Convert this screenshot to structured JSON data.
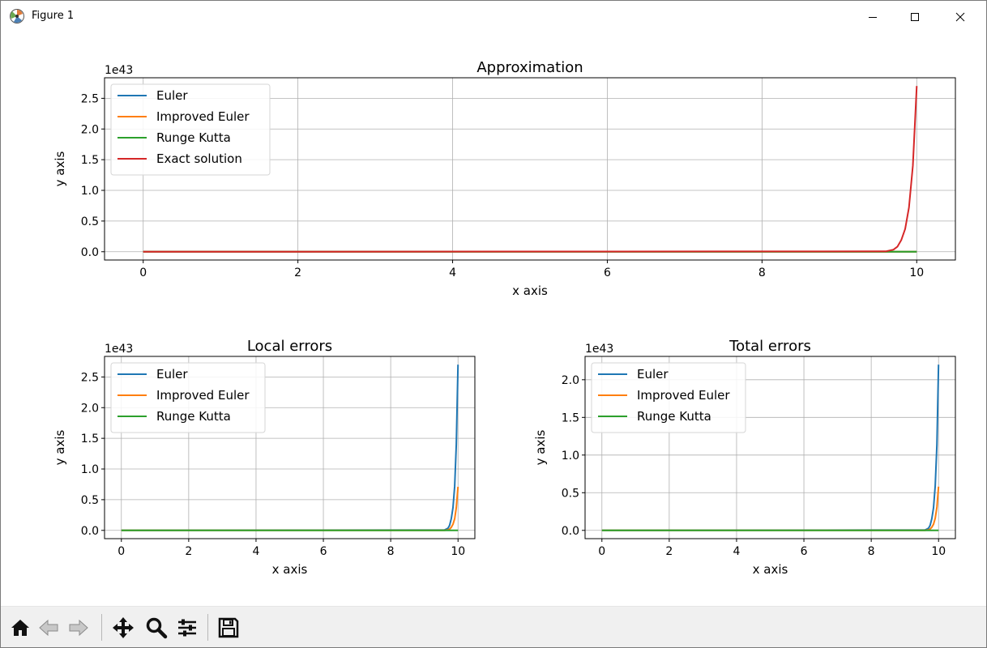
{
  "window": {
    "title": "Figure 1",
    "icons": {
      "app": "matplotlib-icon",
      "minimize": "minimize-icon",
      "maximize": "maximize-icon",
      "close": "close-icon"
    }
  },
  "toolbar": {
    "buttons": [
      {
        "name": "home-button",
        "icon": "home-icon"
      },
      {
        "name": "back-button",
        "icon": "arrow-left-icon"
      },
      {
        "name": "forward-button",
        "icon": "arrow-right-icon"
      },
      {
        "name": "pan-button",
        "icon": "move-icon"
      },
      {
        "name": "zoom-button",
        "icon": "magnifier-icon"
      },
      {
        "name": "configure-subplots-button",
        "icon": "sliders-icon"
      },
      {
        "name": "save-button",
        "icon": "floppy-disk-icon"
      }
    ]
  },
  "colors": {
    "euler": "#1f77b4",
    "improved_euler": "#ff7f0e",
    "runge_kutta": "#2ca02c",
    "exact": "#d62728",
    "grid": "#b0b0b0"
  },
  "chart_data": [
    {
      "type": "line",
      "title": "Approximation",
      "xlabel": "x axis",
      "ylabel": "y axis",
      "offset_text": "1e43",
      "xlim": [
        -0.5,
        10.5
      ],
      "ylim": [
        -0.135,
        2.835
      ],
      "xticks": [
        0,
        2,
        4,
        6,
        8,
        10
      ],
      "xtick_labels": [
        "0",
        "2",
        "4",
        "6",
        "8",
        "10"
      ],
      "yticks": [
        0.0,
        0.5,
        1.0,
        1.5,
        2.0,
        2.5
      ],
      "ytick_labels": [
        "0.0",
        "0.5",
        "1.0",
        "1.5",
        "2.0",
        "2.5"
      ],
      "grid": true,
      "legend": "upper-left",
      "x": [
        0,
        9.6,
        9.7,
        9.75,
        9.8,
        9.85,
        9.9,
        9.95,
        10
      ],
      "series": [
        {
          "name": "Euler",
          "color": "#1f77b4",
          "values": [
            0,
            0,
            0,
            0,
            0,
            0,
            0,
            0,
            0
          ]
        },
        {
          "name": "Improved Euler",
          "color": "#ff7f0e",
          "values": [
            0,
            0,
            0,
            0,
            0,
            0,
            0,
            0,
            0
          ]
        },
        {
          "name": "Runge Kutta",
          "color": "#2ca02c",
          "values": [
            0,
            0,
            0,
            0,
            0,
            0,
            0,
            0,
            0
          ]
        },
        {
          "name": "Exact solution",
          "color": "#d62728",
          "values": [
            0,
            0.006,
            0.034,
            0.081,
            0.19,
            0.37,
            0.72,
            1.4,
            2.7
          ]
        }
      ]
    },
    {
      "type": "line",
      "title": "Local errors",
      "xlabel": "x axis",
      "ylabel": "y axis",
      "offset_text": "1e43",
      "xlim": [
        -0.5,
        10.5
      ],
      "ylim": [
        -0.135,
        2.835
      ],
      "xticks": [
        0,
        2,
        4,
        6,
        8,
        10
      ],
      "xtick_labels": [
        "0",
        "2",
        "4",
        "6",
        "8",
        "10"
      ],
      "yticks": [
        0.0,
        0.5,
        1.0,
        1.5,
        2.0,
        2.5
      ],
      "ytick_labels": [
        "0.0",
        "0.5",
        "1.0",
        "1.5",
        "2.0",
        "2.5"
      ],
      "grid": true,
      "legend": "upper-left",
      "x": [
        0,
        9.6,
        9.7,
        9.75,
        9.8,
        9.85,
        9.9,
        9.95,
        10
      ],
      "series": [
        {
          "name": "Euler",
          "color": "#1f77b4",
          "values": [
            0,
            0.006,
            0.034,
            0.081,
            0.19,
            0.37,
            0.72,
            1.4,
            2.7
          ]
        },
        {
          "name": "Improved Euler",
          "color": "#ff7f0e",
          "values": [
            0,
            0.0015,
            0.009,
            0.021,
            0.05,
            0.1,
            0.19,
            0.37,
            0.71
          ]
        },
        {
          "name": "Runge Kutta",
          "color": "#2ca02c",
          "values": [
            0,
            0,
            0,
            0,
            0,
            0,
            0,
            0,
            0
          ]
        }
      ]
    },
    {
      "type": "line",
      "title": "Total errors",
      "xlabel": "x axis",
      "ylabel": "y axis",
      "offset_text": "1e43",
      "xlim": [
        -0.5,
        10.5
      ],
      "ylim": [
        -0.11,
        2.31
      ],
      "xticks": [
        0,
        2,
        4,
        6,
        8,
        10
      ],
      "xtick_labels": [
        "0",
        "2",
        "4",
        "6",
        "8",
        "10"
      ],
      "yticks": [
        0.0,
        0.5,
        1.0,
        1.5,
        2.0
      ],
      "ytick_labels": [
        "0.0",
        "0.5",
        "1.0",
        "1.5",
        "2.0"
      ],
      "grid": true,
      "legend": "upper-left",
      "x": [
        0,
        9.6,
        9.7,
        9.75,
        9.8,
        9.85,
        9.9,
        9.95,
        10
      ],
      "series": [
        {
          "name": "Euler",
          "color": "#1f77b4",
          "values": [
            0,
            0.005,
            0.028,
            0.066,
            0.155,
            0.3,
            0.59,
            1.14,
            2.2
          ]
        },
        {
          "name": "Improved Euler",
          "color": "#ff7f0e",
          "values": [
            0,
            0.0013,
            0.0075,
            0.018,
            0.042,
            0.081,
            0.16,
            0.31,
            0.58
          ]
        },
        {
          "name": "Runge Kutta",
          "color": "#2ca02c",
          "values": [
            0,
            0,
            0,
            0,
            0,
            0,
            0,
            0,
            0
          ]
        }
      ]
    }
  ]
}
